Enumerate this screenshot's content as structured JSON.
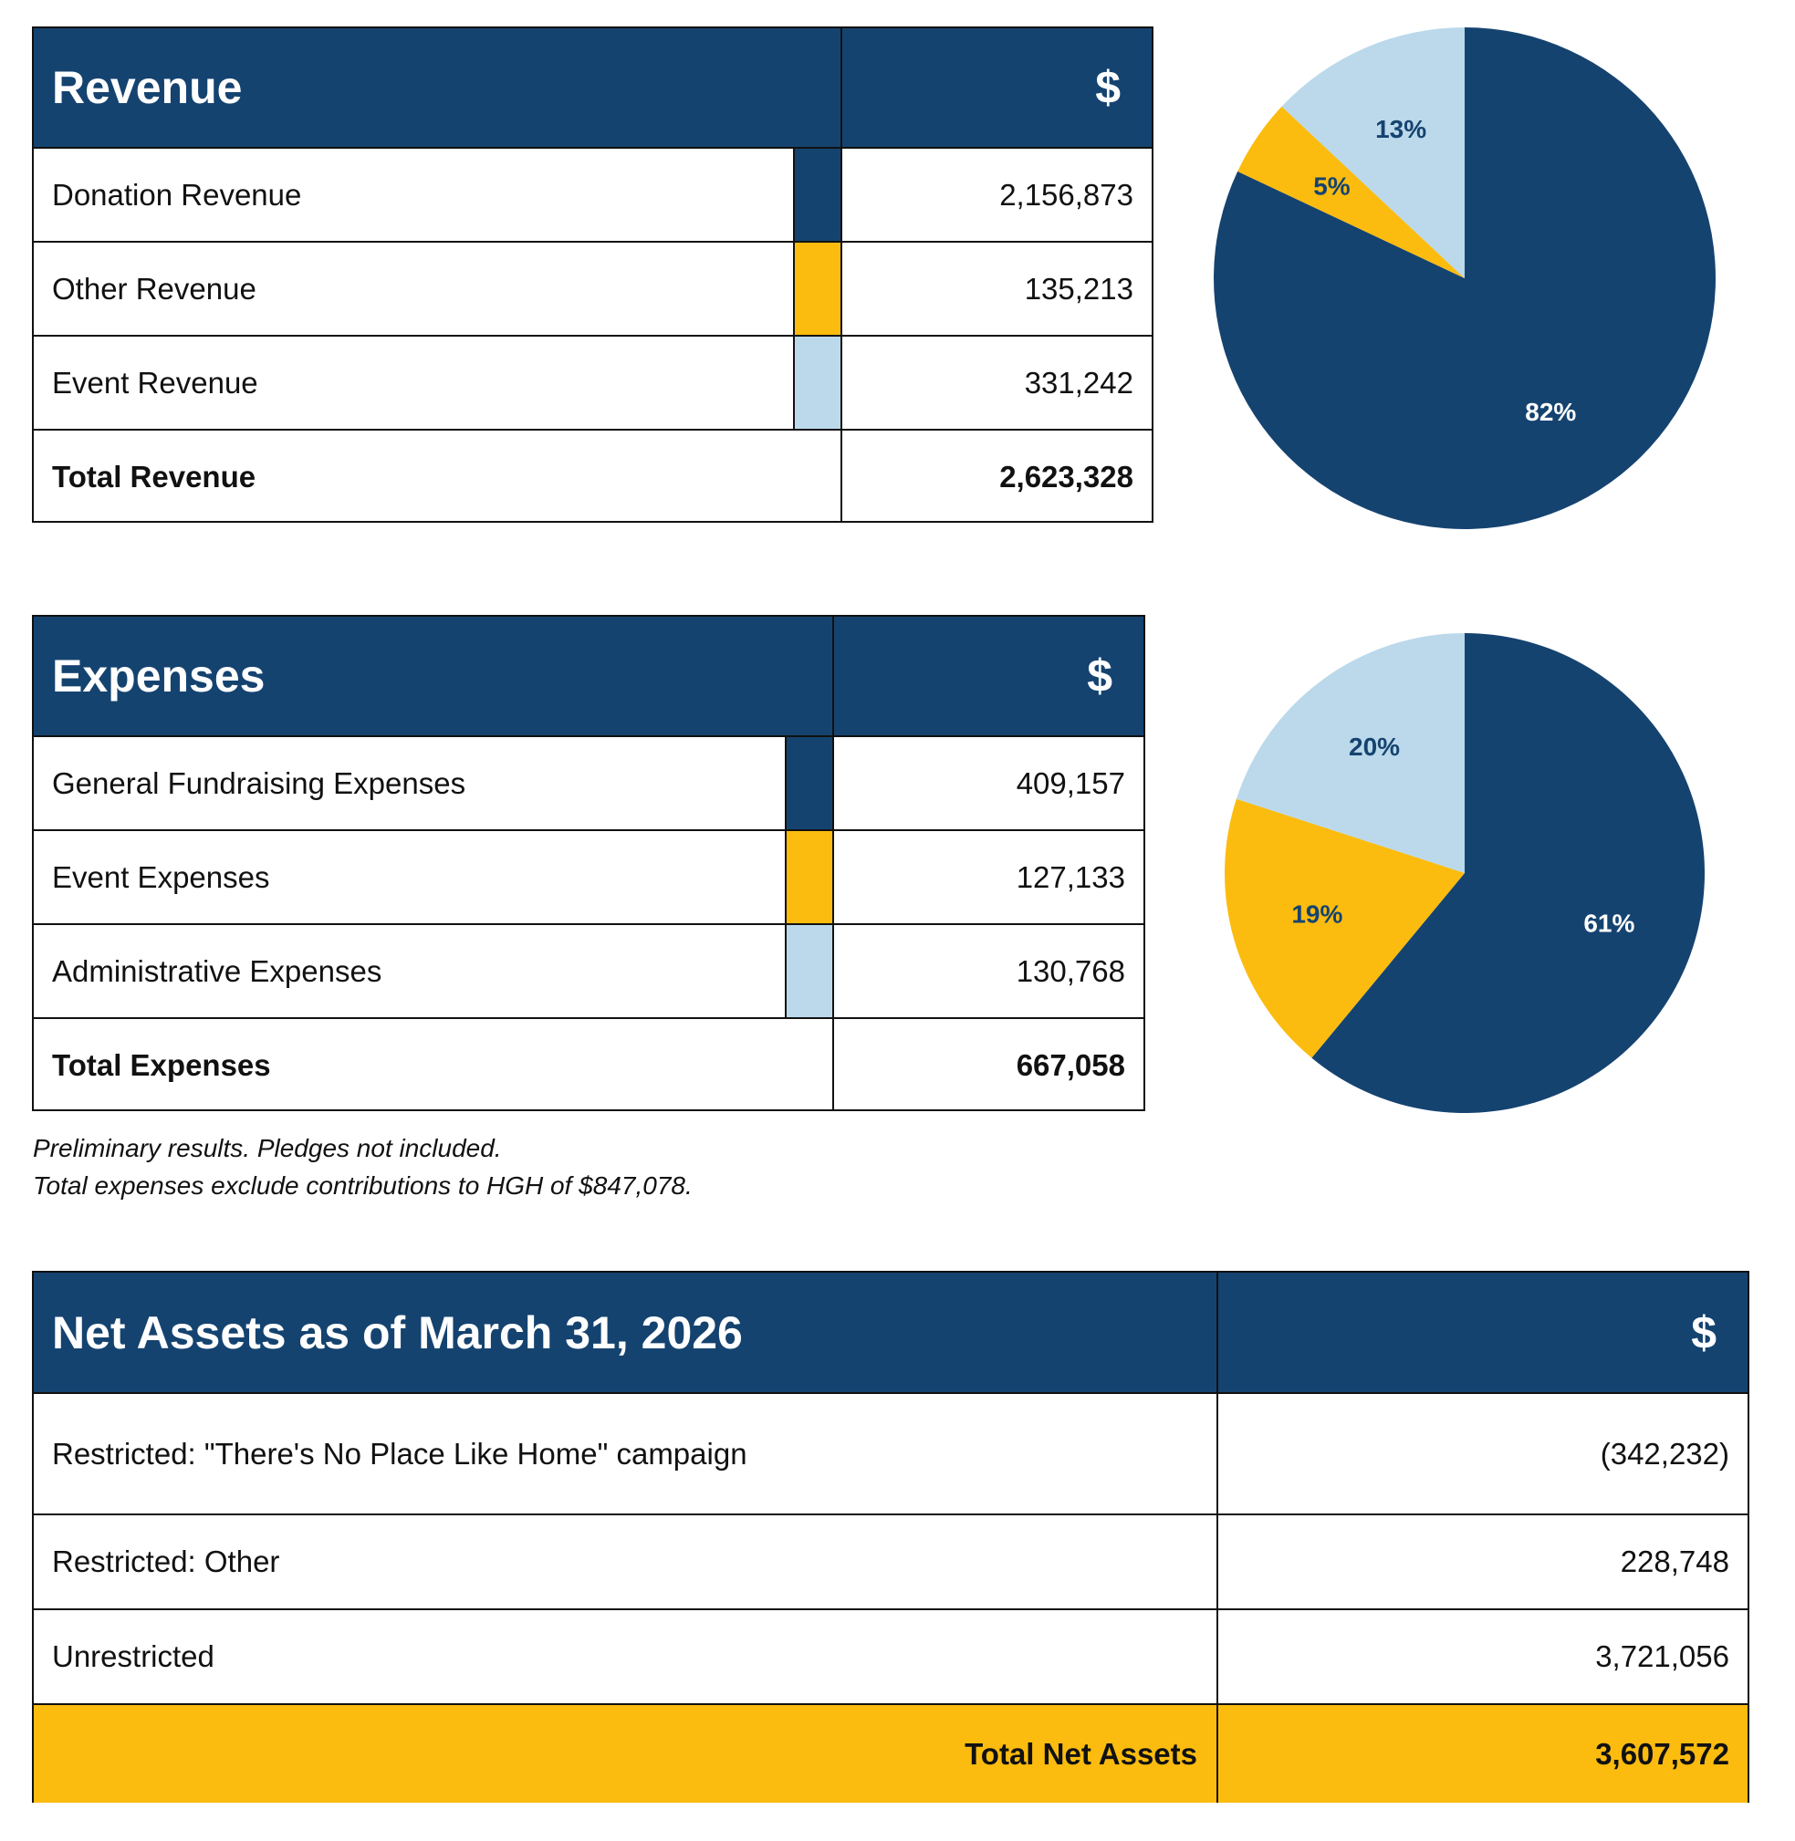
{
  "colors": {
    "navy": "#154370",
    "gold": "#FBBC0F",
    "light_blue": "#BBD9EB"
  },
  "revenue": {
    "title": "Revenue",
    "currency": "$",
    "rows": [
      {
        "label": "Donation Revenue",
        "value": "2,156,873",
        "color": "#154370"
      },
      {
        "label": "Other Revenue",
        "value": "135,213",
        "color": "#FBBC0F"
      },
      {
        "label": "Event Revenue",
        "value": "331,242",
        "color": "#BBD9EB"
      }
    ],
    "total_label": "Total Revenue",
    "total_value": "2,623,328"
  },
  "expenses": {
    "title": "Expenses",
    "currency": "$",
    "rows": [
      {
        "label": "General Fundraising Expenses",
        "value": "409,157",
        "color": "#154370"
      },
      {
        "label": "Event Expenses",
        "value": "127,133",
        "color": "#FBBC0F"
      },
      {
        "label": "Administrative Expenses",
        "value": "130,768",
        "color": "#BBD9EB"
      }
    ],
    "total_label": "Total Expenses",
    "total_value": "667,058"
  },
  "notes": {
    "line1": "Preliminary results. Pledges not included.",
    "line2": "Total expenses exclude contributions to HGH of $847,078."
  },
  "net_assets": {
    "title": "Net Assets as of March 31, 2026",
    "currency": "$",
    "rows": [
      {
        "label": "Restricted: \"There's No Place Like Home\" campaign",
        "value": "(342,232)"
      },
      {
        "label": "Restricted: Other",
        "value": "228,748"
      },
      {
        "label": "Unrestricted",
        "value": "3,721,056"
      }
    ],
    "total_label": "Total Net Assets",
    "total_value": "3,607,572"
  },
  "chart_data": [
    {
      "type": "pie",
      "categories": [
        "Donation Revenue",
        "Other Revenue",
        "Event Revenue"
      ],
      "values": [
        82,
        5,
        13
      ],
      "labels": [
        "82%",
        "5%",
        "13%"
      ],
      "colors": [
        "#154370",
        "#FBBC0F",
        "#BBD9EB"
      ],
      "label_colors": [
        "#ffffff",
        "#154370",
        "#154370"
      ]
    },
    {
      "type": "pie",
      "categories": [
        "General Fundraising Expenses",
        "Event Expenses",
        "Administrative Expenses"
      ],
      "values": [
        61,
        19,
        20
      ],
      "labels": [
        "61%",
        "19%",
        "20%"
      ],
      "colors": [
        "#154370",
        "#FBBC0F",
        "#BBD9EB"
      ],
      "label_colors": [
        "#ffffff",
        "#154370",
        "#154370"
      ]
    }
  ]
}
